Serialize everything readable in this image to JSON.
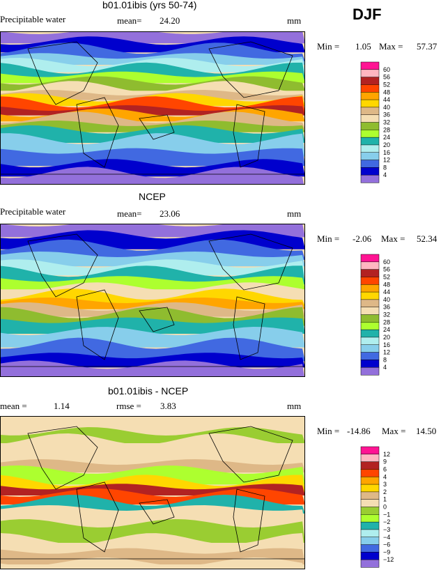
{
  "season": "DJF",
  "chart_data": [
    {
      "type": "heatmap",
      "title": "b01.01ibis (yrs 50-74)",
      "variable": "Precipitable water",
      "mean_label": "mean=",
      "mean": "24.20",
      "units": "mm",
      "min_label": "Min =",
      "min": "1.05",
      "max_label": "Max =",
      "max": "57.37",
      "levels": [
        "60",
        "56",
        "52",
        "48",
        "44",
        "40",
        "36",
        "32",
        "28",
        "24",
        "20",
        "16",
        "12",
        "8",
        "4"
      ],
      "colors": [
        "#ff1493",
        "#ffb6c1",
        "#b22222",
        "#ff4500",
        "#ffa500",
        "#ffd700",
        "#deb887",
        "#f5deb3",
        "#8fbc2f",
        "#adff2f",
        "#20b2aa",
        "#afeeee",
        "#87ceeb",
        "#4169e1",
        "#0000cd",
        "#9370db"
      ]
    },
    {
      "type": "heatmap",
      "title": "NCEP",
      "variable": "Precipitable water",
      "mean_label": "mean=",
      "mean": "23.06",
      "units": "mm",
      "min_label": "Min =",
      "min": "-2.06",
      "max_label": "Max =",
      "max": "52.34",
      "levels": [
        "60",
        "56",
        "52",
        "48",
        "44",
        "40",
        "36",
        "32",
        "28",
        "24",
        "20",
        "16",
        "12",
        "8",
        "4"
      ],
      "colors": [
        "#ff1493",
        "#ffb6c1",
        "#b22222",
        "#ff4500",
        "#ffa500",
        "#ffd700",
        "#deb887",
        "#f5deb3",
        "#8fbc2f",
        "#adff2f",
        "#20b2aa",
        "#afeeee",
        "#87ceeb",
        "#4169e1",
        "#0000cd",
        "#9370db"
      ]
    },
    {
      "type": "heatmap",
      "title": "b01.01ibis - NCEP",
      "mean_label": "mean =",
      "mean": "1.14",
      "rmse_label": "rmse =",
      "rmse": "3.83",
      "units": "mm",
      "min_label": "Min =",
      "min": "-14.86",
      "max_label": "Max =",
      "max": "14.50",
      "levels": [
        "12",
        "9",
        "6",
        "4",
        "3",
        "2",
        "1",
        "0",
        "-1",
        "-2",
        "-3",
        "-4",
        "-6",
        "-9",
        "-12"
      ],
      "colors": [
        "#ff1493",
        "#ffb6c1",
        "#b22222",
        "#ff4500",
        "#ffa500",
        "#ffd700",
        "#deb887",
        "#f5deb3",
        "#9acd32",
        "#adff2f",
        "#20b2aa",
        "#afeeee",
        "#87ceeb",
        "#4169e1",
        "#0000cd",
        "#9370db"
      ]
    }
  ]
}
